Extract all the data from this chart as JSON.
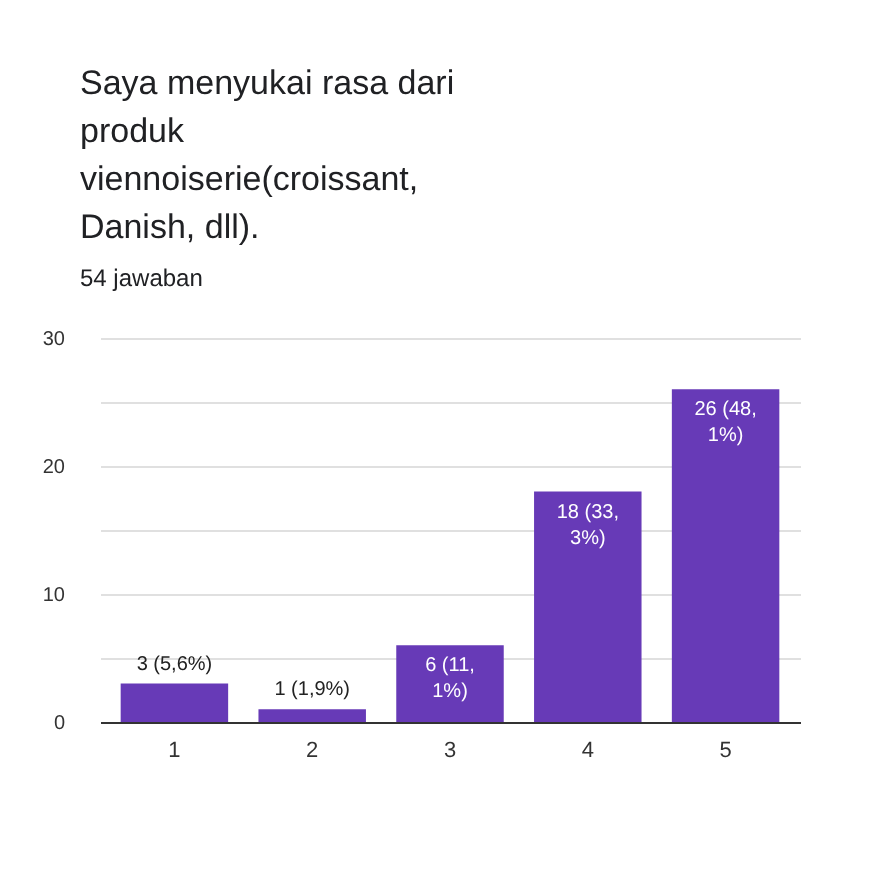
{
  "chart_data": {
    "type": "bar",
    "title": "Saya menyukai rasa dari produk viennoiserie(croissant, Danish, dll).",
    "subtitle": "54 jawaban",
    "categories": [
      "1",
      "2",
      "3",
      "4",
      "5"
    ],
    "values": [
      3,
      1,
      6,
      18,
      26
    ],
    "color": "#673ab7",
    "value_labels": [
      "3 (5,6%)",
      "1 (1,9%)",
      "6 (11,1%)",
      "18 (33,3%)",
      "26 (48,1%)"
    ],
    "ylim": [
      0,
      30
    ],
    "yticks": [
      0,
      {
        "value": 5,
        "label": null
      },
      10,
      {
        "value": 15,
        "label": null
      },
      20,
      {
        "value": 25,
        "label": null
      },
      30
    ],
    "grid": "y"
  }
}
